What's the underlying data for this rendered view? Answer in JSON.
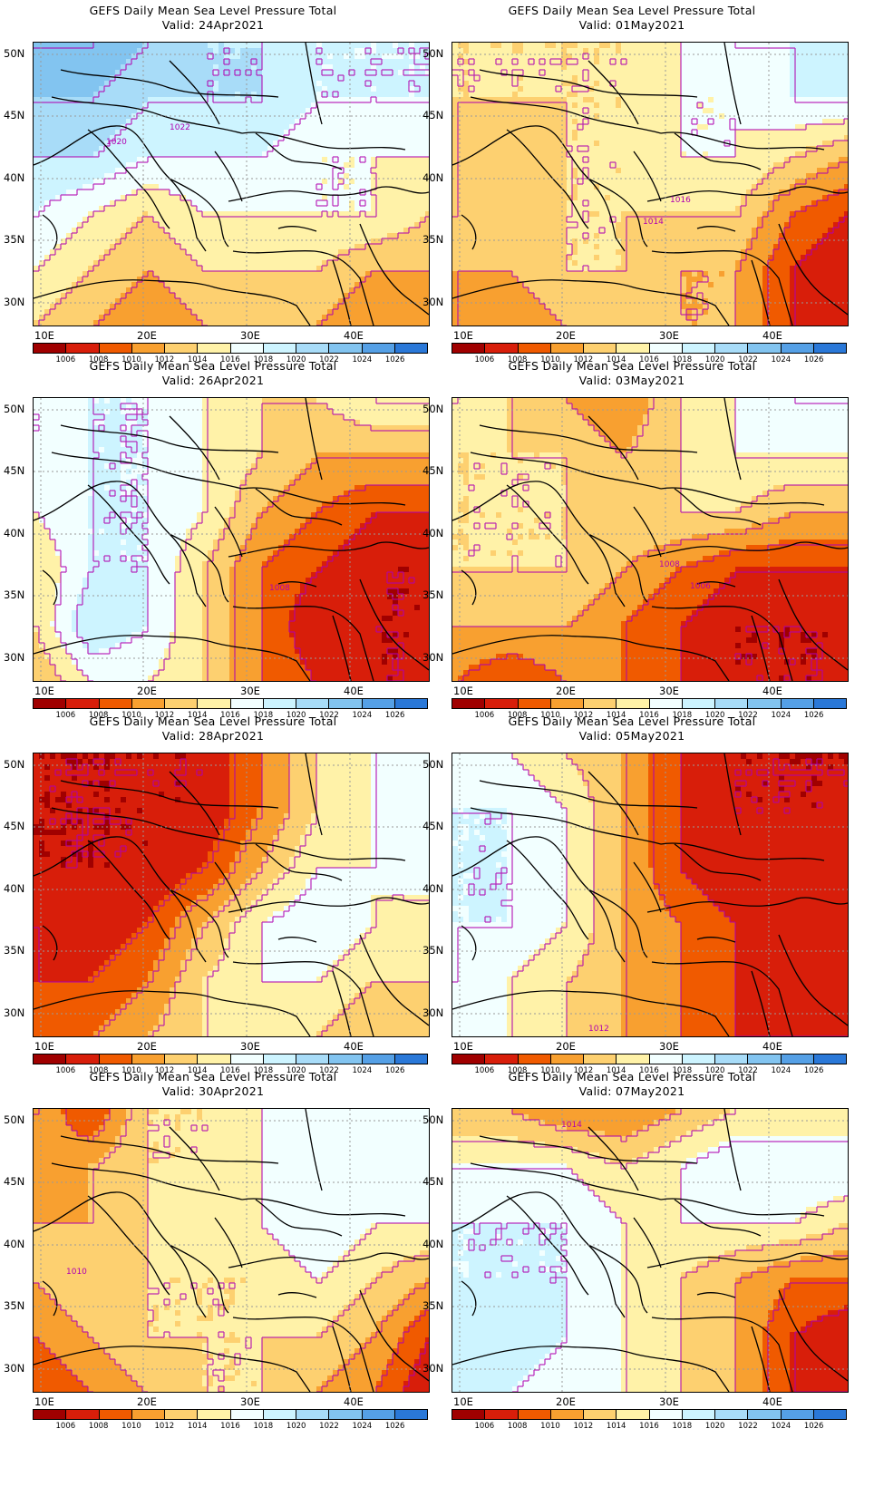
{
  "colorbar": {
    "colors": [
      "#a00000",
      "#d81e0a",
      "#f05a00",
      "#f8a030",
      "#fdd070",
      "#fff2a8",
      "#f2ffff",
      "#cdf4ff",
      "#a8dcf8",
      "#82c4f0",
      "#55a0e6",
      "#2a78d8"
    ],
    "labels": [
      "1006",
      "1008",
      "1010",
      "1012",
      "1014",
      "1016",
      "1018",
      "1020",
      "1022",
      "1024",
      "1026"
    ]
  },
  "axes": {
    "lat_labels": [
      "50N",
      "45N",
      "40N",
      "35N",
      "30N"
    ],
    "lon_labels": [
      "10E",
      "20E",
      "30E",
      "40E"
    ]
  },
  "contour_color": "#b000b0",
  "panels": [
    {
      "id": "p1",
      "line1": "GEFS Daily Mean Sea Level Pressure Total",
      "line2": "Valid: 24Apr2021",
      "pressures": [
        [
          1024,
          1024,
          1022,
          1020,
          1020,
          1018,
          1018,
          1018
        ],
        [
          1022,
          1022,
          1020,
          1020,
          1020,
          1018,
          1018,
          1018
        ],
        [
          1020,
          1020,
          1018,
          1018,
          1018,
          1016,
          1016,
          1016
        ],
        [
          1018,
          1016,
          1014,
          1016,
          1016,
          1016,
          1016,
          1014
        ],
        [
          1016,
          1014,
          1012,
          1014,
          1014,
          1014,
          1012,
          1012
        ],
        [
          1014,
          1012,
          1010,
          1012,
          1012,
          1012,
          1010,
          1010
        ]
      ],
      "labels": [
        {
          "text": "1022"
        },
        {
          "text": "1020"
        }
      ]
    },
    {
      "id": "p2",
      "line1": "GEFS Daily Mean Sea Level Pressure Total",
      "line2": "Valid: 01May2021",
      "pressures": [
        [
          1014,
          1014,
          1014,
          1014,
          1016,
          1018,
          1018,
          1020
        ],
        [
          1014,
          1014,
          1014,
          1014,
          1016,
          1016,
          1018,
          1018
        ],
        [
          1014,
          1012,
          1014,
          1014,
          1016,
          1016,
          1014,
          1012
        ],
        [
          1014,
          1012,
          1014,
          1014,
          1014,
          1014,
          1010,
          1008
        ],
        [
          1012,
          1012,
          1014,
          1014,
          1012,
          1012,
          1008,
          1006
        ],
        [
          1012,
          1010,
          1012,
          1014,
          1012,
          1012,
          1008,
          1006
        ]
      ],
      "labels": [
        {
          "text": "1016"
        },
        {
          "text": "1014"
        }
      ]
    },
    {
      "id": "p3",
      "line1": "GEFS Daily Mean Sea Level Pressure Total",
      "line2": "Valid: 26Apr2021",
      "pressures": [
        [
          1016,
          1018,
          1018,
          1016,
          1014,
          1014,
          1016,
          1016
        ],
        [
          1016,
          1018,
          1018,
          1016,
          1014,
          1012,
          1012,
          1012
        ],
        [
          1016,
          1018,
          1018,
          1016,
          1012,
          1010,
          1008,
          1008
        ],
        [
          1014,
          1018,
          1018,
          1014,
          1010,
          1008,
          1006,
          1006
        ],
        [
          1014,
          1020,
          1018,
          1014,
          1010,
          1006,
          1006,
          1006
        ],
        [
          1012,
          1016,
          1016,
          1014,
          1010,
          1008,
          1006,
          1006
        ]
      ],
      "labels": [
        {
          "text": "1008"
        }
      ]
    },
    {
      "id": "p4",
      "line1": "GEFS Daily Mean Sea Level Pressure Total",
      "line2": "Valid: 03May2021",
      "pressures": [
        [
          1016,
          1014,
          1012,
          1010,
          1014,
          1016,
          1018,
          1018
        ],
        [
          1014,
          1014,
          1014,
          1012,
          1014,
          1016,
          1016,
          1016
        ],
        [
          1014,
          1014,
          1014,
          1014,
          1014,
          1014,
          1012,
          1012
        ],
        [
          1014,
          1014,
          1014,
          1012,
          1010,
          1008,
          1008,
          1008
        ],
        [
          1012,
          1012,
          1012,
          1010,
          1008,
          1006,
          1006,
          1006
        ],
        [
          1010,
          1008,
          1010,
          1010,
          1008,
          1006,
          1006,
          1006
        ]
      ],
      "labels": [
        {
          "text": "1008"
        },
        {
          "text": "1006"
        }
      ]
    },
    {
      "id": "p5",
      "line1": "GEFS Daily Mean Sea Level Pressure Total",
      "line2": "Valid: 28Apr2021",
      "pressures": [
        [
          1006,
          1006,
          1006,
          1006,
          1010,
          1014,
          1016,
          1018
        ],
        [
          1006,
          1006,
          1006,
          1006,
          1010,
          1014,
          1016,
          1018
        ],
        [
          1006,
          1006,
          1006,
          1008,
          1012,
          1016,
          1016,
          1018
        ],
        [
          1008,
          1006,
          1008,
          1012,
          1016,
          1018,
          1016,
          1014
        ],
        [
          1008,
          1008,
          1010,
          1014,
          1016,
          1016,
          1014,
          1014
        ],
        [
          1008,
          1010,
          1012,
          1014,
          1014,
          1014,
          1012,
          1012
        ]
      ],
      "labels": []
    },
    {
      "id": "p6",
      "line1": "GEFS Daily Mean Sea Level Pressure Total",
      "line2": "Valid: 05May2021",
      "pressures": [
        [
          1016,
          1016,
          1014,
          1012,
          1008,
          1006,
          1006,
          1006
        ],
        [
          1018,
          1018,
          1016,
          1012,
          1008,
          1006,
          1006,
          1006
        ],
        [
          1018,
          1018,
          1016,
          1012,
          1008,
          1006,
          1008,
          1008
        ],
        [
          1018,
          1018,
          1016,
          1012,
          1010,
          1008,
          1006,
          1006
        ],
        [
          1018,
          1016,
          1014,
          1012,
          1010,
          1008,
          1006,
          1008
        ],
        [
          1016,
          1016,
          1014,
          1012,
          1010,
          1008,
          1008,
          1008
        ]
      ],
      "labels": [
        {
          "text": "1012"
        }
      ]
    },
    {
      "id": "p7",
      "line1": "GEFS Daily Mean Sea Level Pressure Total",
      "line2": "Valid: 30Apr2021",
      "pressures": [
        [
          1012,
          1008,
          1014,
          1014,
          1016,
          1016,
          1016,
          1016
        ],
        [
          1010,
          1012,
          1014,
          1014,
          1016,
          1018,
          1018,
          1016
        ],
        [
          1012,
          1012,
          1014,
          1016,
          1016,
          1018,
          1016,
          1016
        ],
        [
          1012,
          1014,
          1014,
          1014,
          1014,
          1016,
          1014,
          1012
        ],
        [
          1010,
          1012,
          1014,
          1014,
          1014,
          1014,
          1012,
          1008
        ],
        [
          1008,
          1010,
          1012,
          1014,
          1014,
          1012,
          1010,
          1006
        ]
      ],
      "labels": [
        {
          "text": "1010"
        }
      ]
    },
    {
      "id": "p8",
      "line1": "GEFS Daily Mean Sea Level Pressure Total",
      "line2": "Valid: 07May2021",
      "pressures": [
        [
          1012,
          1012,
          1010,
          1010,
          1012,
          1014,
          1014,
          1014
        ],
        [
          1016,
          1016,
          1016,
          1014,
          1016,
          1018,
          1018,
          1018
        ],
        [
          1018,
          1018,
          1018,
          1016,
          1016,
          1016,
          1016,
          1014
        ],
        [
          1018,
          1018,
          1018,
          1016,
          1014,
          1012,
          1010,
          1010
        ],
        [
          1018,
          1020,
          1018,
          1016,
          1014,
          1012,
          1008,
          1006
        ],
        [
          1018,
          1018,
          1016,
          1016,
          1014,
          1012,
          1008,
          1008
        ]
      ],
      "labels": [
        {
          "text": "1014"
        }
      ]
    }
  ]
}
